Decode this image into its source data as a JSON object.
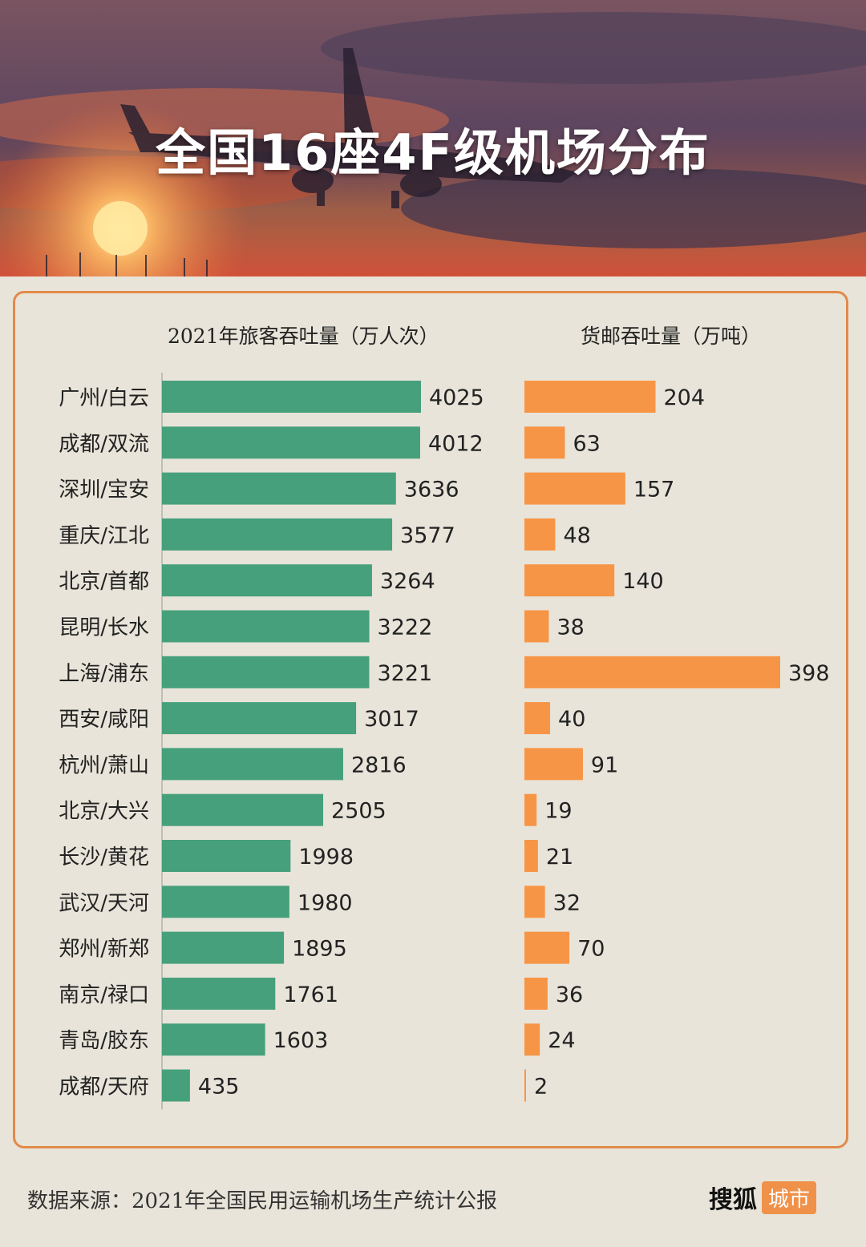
{
  "title": "全国16座4F级机场分布",
  "headers": {
    "passenger": "2021年旅客吞吐量（万人次）",
    "cargo": "货邮吞吐量（万吨）"
  },
  "colors": {
    "passenger_bar": "#46a07c",
    "cargo_bar": "#f79546",
    "border": "#e28a4a"
  },
  "chart_data": {
    "type": "bar",
    "orientation": "horizontal",
    "categories": [
      "广州/白云",
      "成都/双流",
      "深圳/宝安",
      "重庆/江北",
      "北京/首都",
      "昆明/长水",
      "上海/浦东",
      "西安/咸阳",
      "杭州/萧山",
      "北京/大兴",
      "长沙/黄花",
      "武汉/天河",
      "郑州/新郑",
      "南京/禄口",
      "青岛/胶东",
      "成都/天府"
    ],
    "series": [
      {
        "name": "2021年旅客吞吐量（万人次）",
        "values": [
          4025,
          4012,
          3636,
          3577,
          3264,
          3222,
          3221,
          3017,
          2816,
          2505,
          1998,
          1980,
          1895,
          1761,
          1603,
          435
        ]
      },
      {
        "name": "货邮吞吐量（万吨）",
        "values": [
          204,
          63,
          157,
          48,
          140,
          38,
          398,
          40,
          91,
          19,
          21,
          32,
          70,
          36,
          24,
          2
        ]
      }
    ]
  },
  "footer": {
    "source": "数据来源：2021年全国民用运输机场生产统计公报"
  },
  "brand": {
    "name": "搜狐",
    "tag": "城市"
  }
}
